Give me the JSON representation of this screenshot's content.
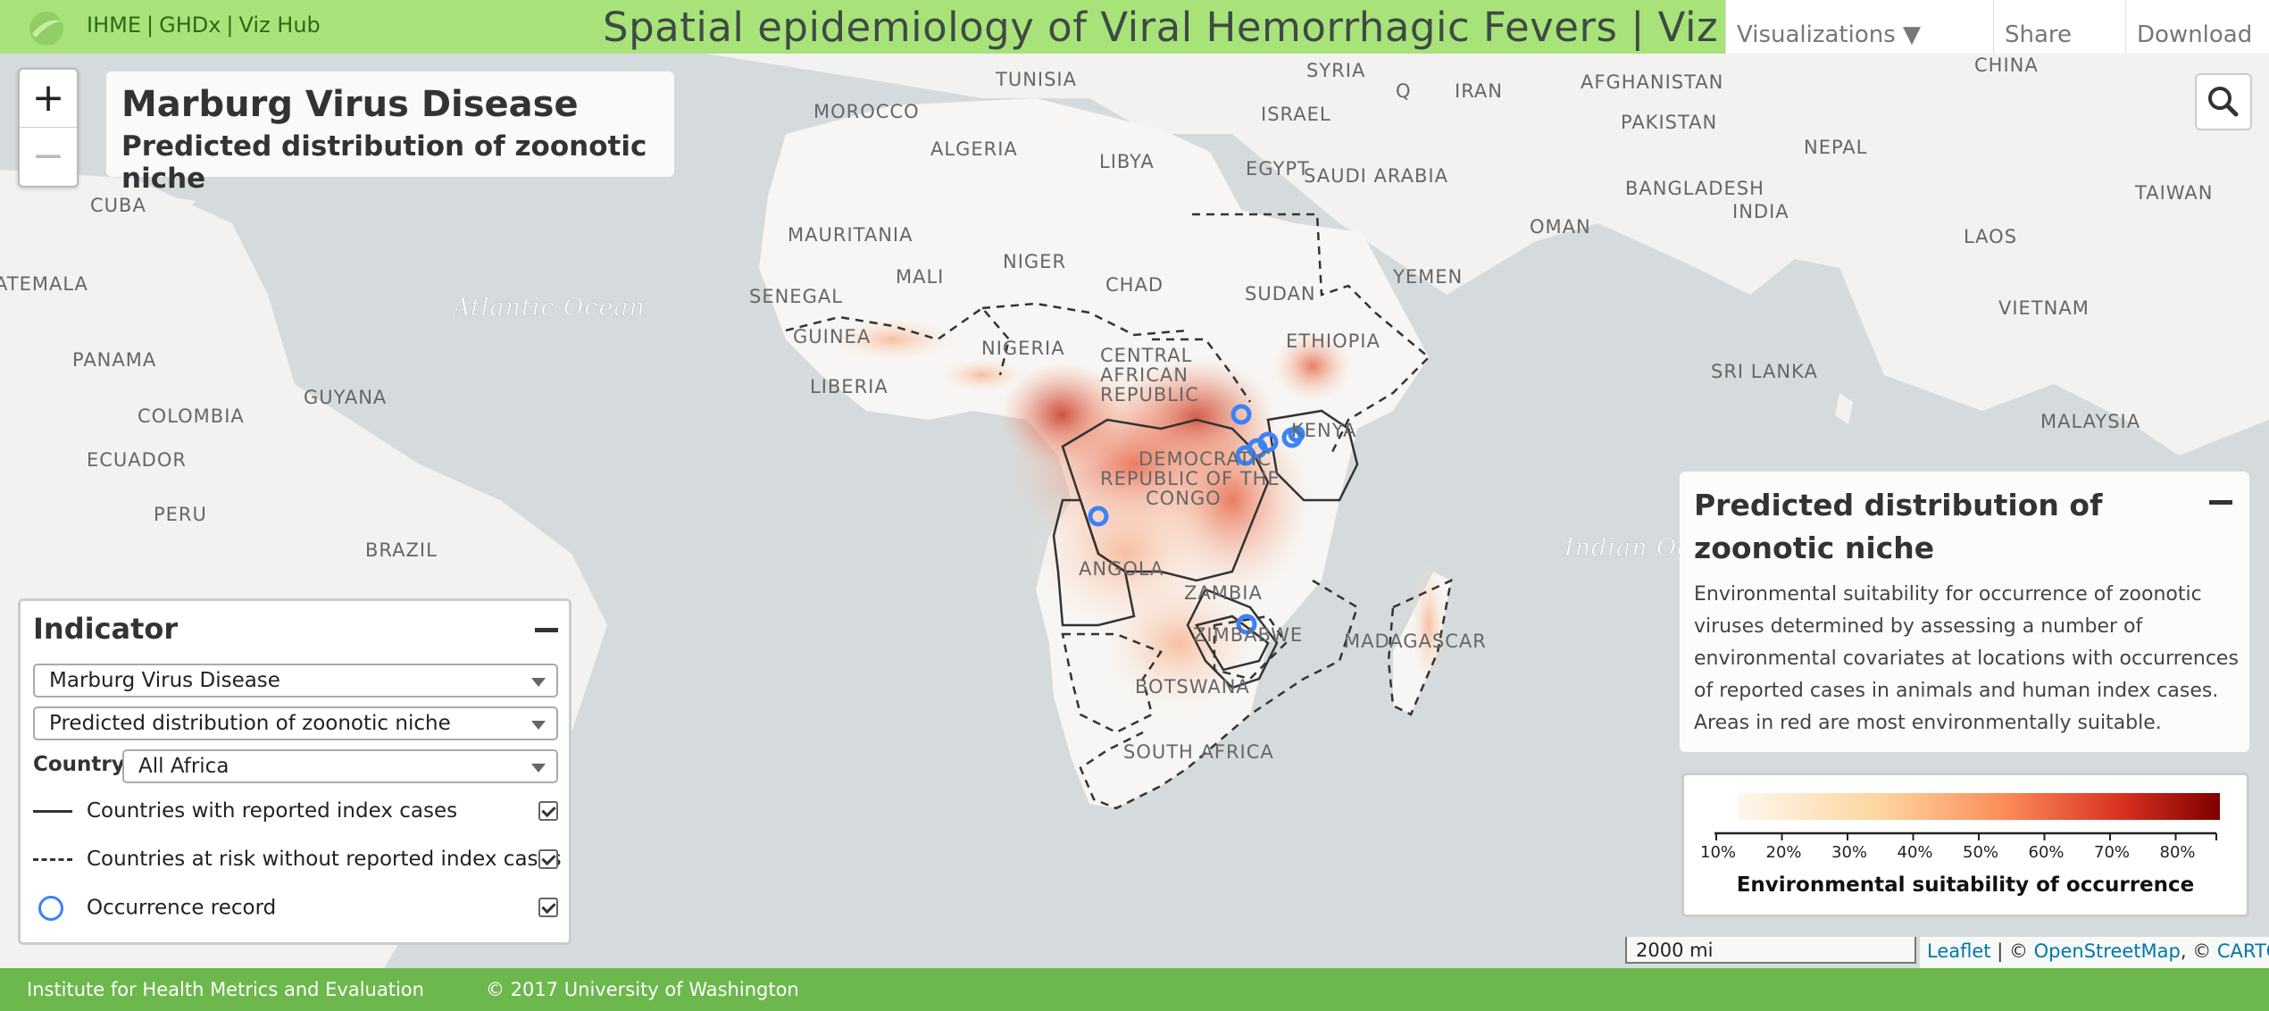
{
  "header": {
    "links": [
      "IHME",
      "GHDx",
      "Viz Hub"
    ],
    "title": "Spatial epidemiology of Viral Hemorrhagic Fevers | Viz Hub",
    "menu": {
      "visualizations": "Visualizations ▼",
      "share": "Share",
      "download": "Download"
    }
  },
  "map": {
    "title": "Marburg Virus Disease",
    "subtitle": "Predicted distribution of zoonotic niche",
    "zoom_in": "+",
    "zoom_out": "−",
    "ocean_labels": [
      "Atlantic Ocean",
      "Indian Ocean"
    ],
    "country_labels": [
      "TUNISIA",
      "SYRIA",
      "Q",
      "IRAN",
      "AFGHANISTAN",
      "CHINA",
      "MOROCCO",
      "ISRAEL",
      "PAKISTAN",
      "ALGERIA",
      "LIBYA",
      "EGYPT",
      "NEPAL",
      "SAUDI ARABIA",
      "BANGLADESH",
      "TAIWAN",
      "CUBA",
      "INDIA",
      "OMAN",
      "LAOS",
      "MAURITANIA",
      "MALI",
      "NIGER",
      "CHAD",
      "SUDAN",
      "YEMEN",
      "VIETNAM",
      "ATEMALA",
      "SENEGAL",
      "GUINEA",
      "NIGERIA",
      "ETHIOPIA",
      "CENTRAL AFRICAN REPUBLIC",
      "PANAMA",
      "GUYANA",
      "LIBERIA",
      "SRI LANKA",
      "COLOMBIA",
      "KENYA",
      "MALAYSIA",
      "ECUADOR",
      "DEMOCRATIC REPUBLIC OF THE CONGO",
      "PERU",
      "BRAZIL",
      "ANGOLA",
      "ZAMBIA",
      "ZIMBABWE",
      "MADAGASCAR",
      "BOTSWANA",
      "SOUTH AFRICA"
    ],
    "scale": "2000 mi",
    "attribution": {
      "leaflet": "Leaflet",
      "osm": "OpenStreetMap",
      "carto": "CARTO"
    }
  },
  "indicator_panel": {
    "title": "Indicator",
    "disease": "Marburg Virus Disease",
    "measure": "Predicted distribution of zoonotic niche",
    "country_label": "Country",
    "country": "All Africa",
    "legend": [
      {
        "label": "Countries with reported index cases",
        "checked": true
      },
      {
        "label": "Countries at risk without reported index cases",
        "checked": true
      },
      {
        "label": "Occurrence record",
        "checked": true
      }
    ]
  },
  "info_panel": {
    "title": "Predicted distribution of zoonotic niche",
    "description": "Environmental suitability for occurrence of zoonotic viruses determined by assessing a number of environmental covariates at locations with occurrences of reported cases in animals and human index cases. Areas in red are most environmentally suitable."
  },
  "color_scale": {
    "ticks": [
      "10%",
      "20%",
      "30%",
      "40%",
      "50%",
      "60%",
      "70%",
      "80%"
    ],
    "title": "Environmental suitability of occurrence",
    "colors": [
      "#fff7ec",
      "#fdd49e",
      "#fc8d59",
      "#d7301f",
      "#7f0000"
    ]
  },
  "footer": {
    "org": "Institute for Health Metrics and Evaluation",
    "copyright": "© 2017 University of Washington"
  },
  "colors": {
    "header": "#a8e37a",
    "footer": "#6cb84c",
    "occurrence": "#3b82f6"
  }
}
